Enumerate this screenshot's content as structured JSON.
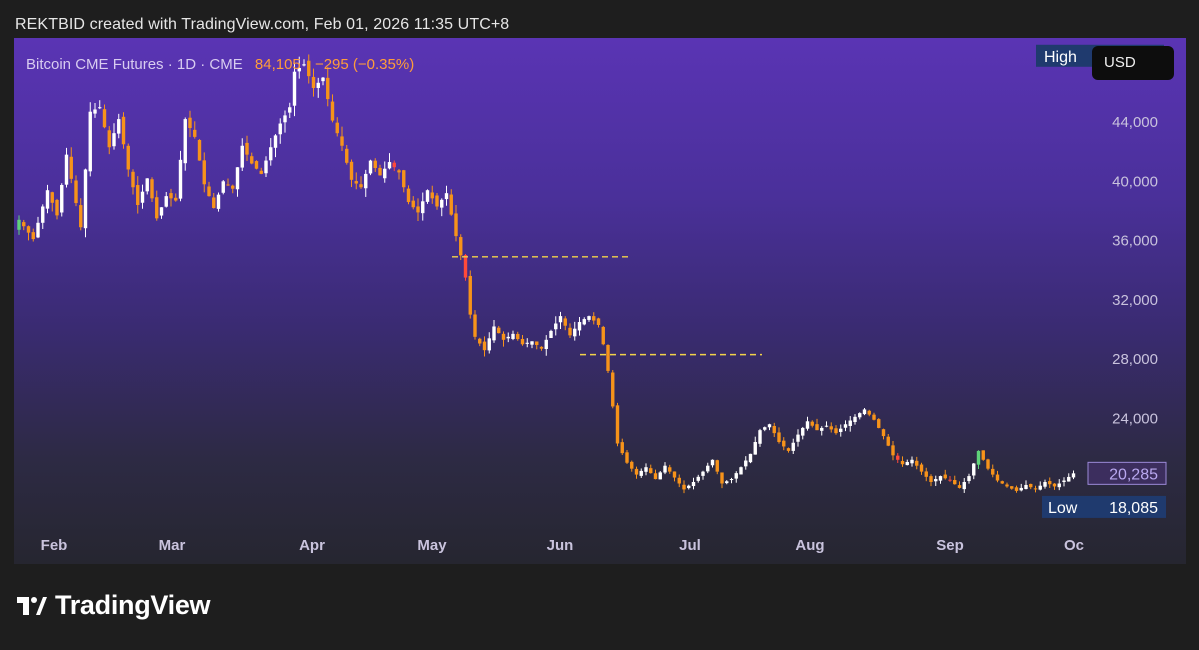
{
  "attribution": "REKTBID created with TradingView.com, Feb 01, 2026 11:35 UTC+8",
  "legend": {
    "symbol": "Bitcoin CME Futures · 1D · CME",
    "last": "84,105",
    "change": "−295 (−0.35%)"
  },
  "currency_button": "USD",
  "brand": "TradingView",
  "icons": [
    "tradingview-logo-icon"
  ],
  "colors": {
    "up_candle": "#ffffff",
    "down_candle": "#f7931a",
    "highlight_up": "#5fd37a",
    "highlight_down": "#ff4a3a",
    "level_line": "#f2d24a",
    "label_bg": "#1f3a6e"
  },
  "chart_data": {
    "type": "candlestick",
    "title": "",
    "x_labels": [
      "Feb",
      "Mar",
      "Apr",
      "May",
      "Jun",
      "Jul",
      "Aug",
      "Sep",
      "Oc"
    ],
    "y_ticks": [
      44000,
      40000,
      36000,
      32000,
      28000,
      24000
    ],
    "y_tick_labels": [
      "44,000",
      "40,000",
      "36,000",
      "32,000",
      "28,000",
      "24,000"
    ],
    "ylim": [
      17000,
      49000
    ],
    "high_label": {
      "text": "High",
      "value": "48,475",
      "price": 48475
    },
    "low_label": {
      "text": "Low",
      "value": "18,085",
      "price": 18085
    },
    "last_label": {
      "value": "20,285",
      "price": 20285
    },
    "horizontal_levels": [
      {
        "price": 34900,
        "from": "May",
        "to": "Jun"
      },
      {
        "price": 28300,
        "from": "Jun",
        "to": "Jul"
      }
    ],
    "close_path": [
      [
        0,
        37400
      ],
      [
        3,
        36100
      ],
      [
        6,
        39400
      ],
      [
        8,
        37700
      ],
      [
        10,
        41800
      ],
      [
        13,
        36900
      ],
      [
        15,
        44700
      ],
      [
        17,
        45000
      ],
      [
        19,
        42300
      ],
      [
        21,
        44200
      ],
      [
        23,
        40800
      ],
      [
        25,
        38400
      ],
      [
        27,
        40200
      ],
      [
        29,
        37500
      ],
      [
        31,
        39000
      ],
      [
        33,
        38700
      ],
      [
        35,
        44200
      ],
      [
        37,
        43000
      ],
      [
        39,
        39800
      ],
      [
        41,
        38200
      ],
      [
        43,
        40000
      ],
      [
        45,
        39500
      ],
      [
        47,
        42400
      ],
      [
        49,
        41200
      ],
      [
        51,
        40500
      ],
      [
        53,
        42300
      ],
      [
        55,
        43900
      ],
      [
        57,
        45000
      ],
      [
        58,
        47400
      ],
      [
        60,
        47900
      ],
      [
        62,
        46300
      ],
      [
        64,
        47000
      ],
      [
        66,
        44100
      ],
      [
        68,
        42400
      ],
      [
        70,
        40100
      ],
      [
        72,
        39600
      ],
      [
        74,
        41400
      ],
      [
        76,
        40400
      ],
      [
        78,
        41300
      ],
      [
        80,
        40600
      ],
      [
        82,
        38600
      ],
      [
        84,
        37900
      ],
      [
        86,
        39400
      ],
      [
        88,
        38300
      ],
      [
        90,
        39200
      ],
      [
        92,
        36300
      ],
      [
        93,
        35000
      ],
      [
        94,
        33500
      ],
      [
        95,
        31000
      ],
      [
        96,
        29500
      ],
      [
        98,
        28600
      ],
      [
        100,
        30200
      ],
      [
        102,
        29300
      ],
      [
        104,
        29700
      ],
      [
        106,
        29000
      ],
      [
        108,
        29200
      ],
      [
        110,
        28700
      ],
      [
        112,
        29900
      ],
      [
        114,
        30900
      ],
      [
        116,
        29600
      ],
      [
        118,
        30500
      ],
      [
        120,
        30900
      ],
      [
        122,
        30300
      ],
      [
        123,
        29000
      ],
      [
        124,
        27200
      ],
      [
        125,
        24800
      ],
      [
        126,
        22300
      ],
      [
        128,
        21000
      ],
      [
        130,
        20200
      ],
      [
        132,
        20700
      ],
      [
        134,
        19900
      ],
      [
        136,
        20800
      ],
      [
        138,
        20000
      ],
      [
        140,
        19200
      ],
      [
        142,
        19700
      ],
      [
        144,
        20400
      ],
      [
        146,
        21200
      ],
      [
        148,
        19600
      ],
      [
        150,
        19900
      ],
      [
        152,
        20700
      ],
      [
        154,
        21600
      ],
      [
        156,
        23200
      ],
      [
        158,
        23600
      ],
      [
        160,
        22400
      ],
      [
        162,
        21800
      ],
      [
        164,
        22900
      ],
      [
        166,
        23800
      ],
      [
        168,
        23200
      ],
      [
        170,
        23500
      ],
      [
        172,
        23000
      ],
      [
        174,
        23600
      ],
      [
        176,
        24100
      ],
      [
        178,
        24600
      ],
      [
        180,
        23900
      ],
      [
        182,
        22800
      ],
      [
        184,
        21500
      ],
      [
        186,
        20900
      ],
      [
        188,
        21200
      ],
      [
        190,
        20400
      ],
      [
        192,
        19700
      ],
      [
        194,
        20100
      ],
      [
        196,
        19800
      ],
      [
        198,
        19300
      ],
      [
        200,
        20100
      ],
      [
        202,
        21800
      ],
      [
        204,
        20600
      ],
      [
        206,
        19800
      ],
      [
        208,
        19400
      ],
      [
        210,
        19100
      ],
      [
        212,
        19500
      ],
      [
        214,
        19200
      ],
      [
        216,
        19700
      ],
      [
        218,
        19400
      ],
      [
        220,
        19800
      ],
      [
        222,
        20285
      ]
    ],
    "highlight_candles": [
      {
        "index": 0,
        "color": "up"
      },
      {
        "index": 79,
        "color": "down"
      },
      {
        "index": 94,
        "color": "down"
      },
      {
        "index": 185,
        "color": "down"
      },
      {
        "index": 196,
        "color": "down"
      },
      {
        "index": 202,
        "color": "up"
      }
    ]
  }
}
